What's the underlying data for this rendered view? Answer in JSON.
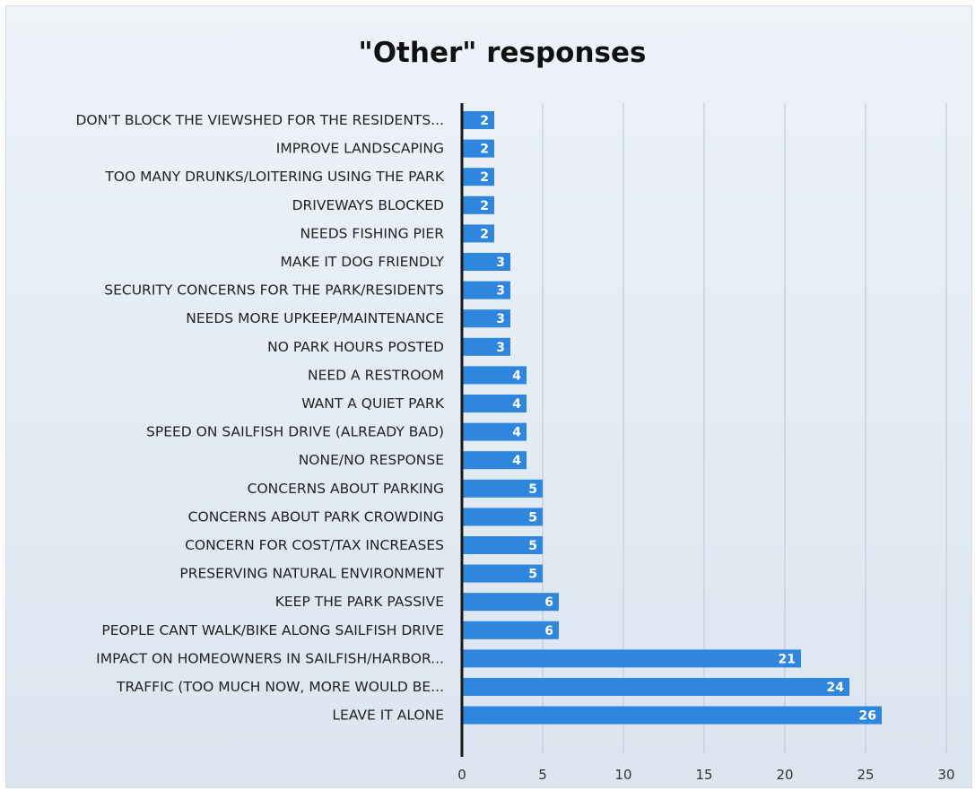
{
  "chart_data": {
    "type": "bar",
    "orientation": "horizontal",
    "title": "\"Other\" responses",
    "categories": [
      "DON'T BLOCK THE VIEWSHED FOR THE RESIDENTS...",
      "IMPROVE LANDSCAPING",
      "TOO MANY DRUNKS/LOITERING USING THE PARK",
      "DRIVEWAYS BLOCKED",
      "NEEDS FISHING PIER",
      "MAKE IT DOG FRIENDLY",
      "SECURITY CONCERNS FOR THE PARK/RESIDENTS",
      "NEEDS MORE UPKEEP/MAINTENANCE",
      "NO PARK HOURS POSTED",
      "NEED A RESTROOM",
      "WANT A QUIET PARK",
      "SPEED ON SAILFISH DRIVE (ALREADY BAD)",
      "NONE/NO RESPONSE",
      "CONCERNS ABOUT PARKING",
      "CONCERNS ABOUT PARK CROWDING",
      "CONCERN FOR COST/TAX INCREASES",
      "PRESERVING NATURAL ENVIRONMENT",
      "KEEP THE PARK PASSIVE",
      "PEOPLE CANT WALK/BIKE ALONG SAILFISH DRIVE",
      "IMPACT ON HOMEOWNERS IN SAILFISH/HARBOR...",
      "TRAFFIC (TOO MUCH NOW, MORE WOULD BE...",
      "LEAVE IT ALONE"
    ],
    "values": [
      2,
      2,
      2,
      2,
      2,
      3,
      3,
      3,
      3,
      4,
      4,
      4,
      4,
      5,
      5,
      5,
      5,
      6,
      6,
      21,
      24,
      26
    ],
    "xlim": [
      0,
      30
    ],
    "xticks": [
      0,
      5,
      10,
      15,
      20,
      25,
      30
    ],
    "grid": "vertical",
    "legend": "none",
    "colors": {
      "bar": "#2e86de",
      "grid": "#b8c6d4",
      "axis": "#1a1a1a"
    }
  }
}
